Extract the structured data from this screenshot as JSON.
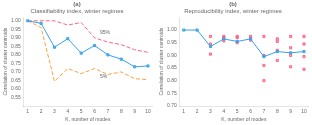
{
  "chart_data": [
    {
      "type": "line",
      "title": "(a)",
      "subtitle": "Classifiability index, winter regimes",
      "xlabel": "K, number of modes",
      "ylabel": "Correlation of cluster centroids",
      "xlim": [
        0.7,
        10.3
      ],
      "ylim": [
        0.5,
        1.02
      ],
      "xticks": [
        1,
        2,
        3,
        4,
        5,
        6,
        7,
        8,
        9,
        10
      ],
      "yticks": [
        0.55,
        {
          "value": 0.6,
          "label": "0.60"
        },
        0.65,
        {
          "value": 0.7,
          "label": "0.70"
        },
        0.75,
        {
          "value": 0.8,
          "label": "0.80"
        },
        0.85,
        {
          "value": 0.9,
          "label": "0.90"
        },
        0.95,
        {
          "value": 1.0,
          "label": "1.00"
        }
      ],
      "grid": false,
      "series": [
        {
          "x": [
            1,
            2,
            3,
            4,
            5,
            6,
            7,
            8,
            9,
            10
          ],
          "values": [
            1.0,
            0.985,
            0.845,
            0.895,
            0.81,
            0.855,
            0.8,
            0.775,
            0.73,
            0.735
          ],
          "marker": "square",
          "line_style": "solid"
        },
        {
          "x": [
            1,
            2,
            3,
            4,
            5,
            6,
            7,
            8,
            9,
            10
          ],
          "values": [
            1.0,
            1.0,
            1.0,
            0.975,
            0.99,
            0.9,
            0.875,
            0.86,
            0.83,
            0.815
          ],
          "line_style": "dashed"
        },
        {
          "x": [
            1,
            2,
            3,
            4,
            5,
            6,
            7,
            8,
            9,
            10
          ],
          "values": [
            1.0,
            0.96,
            0.645,
            0.72,
            0.69,
            0.72,
            0.685,
            0.7,
            0.66,
            0.655
          ],
          "line_style": "dashed"
        }
      ],
      "annotations": [
        {
          "text": "95%",
          "x": 6.4,
          "y": 0.915
        },
        {
          "text": "5%",
          "x": 6.4,
          "y": 0.658
        }
      ]
    },
    {
      "type": "line",
      "title": "(b)",
      "subtitle": "Reproducibility index, winter regimes",
      "xlabel": "K, number of modes",
      "ylabel": "Correlation of cluster centroids",
      "xlim": [
        0.7,
        10.3
      ],
      "ylim": [
        0.7,
        1.05
      ],
      "xticks": [
        1,
        2,
        3,
        4,
        5,
        6,
        7,
        8,
        9,
        10
      ],
      "yticks": [
        {
          "value": 0.7,
          "label": "0.70"
        },
        0.75,
        {
          "value": 0.8,
          "label": "0.80"
        },
        0.85,
        {
          "value": 0.9,
          "label": "0.90"
        },
        0.95,
        {
          "value": 1.0,
          "label": "1.00"
        }
      ],
      "grid": false,
      "series": [
        {
          "x": [
            1,
            2,
            3,
            4,
            5,
            6,
            7,
            8,
            9,
            10
          ],
          "values": [
            1.0,
            1.0,
            0.935,
            0.965,
            0.955,
            0.965,
            0.895,
            0.915,
            0.91,
            0.915
          ],
          "marker": "square",
          "line_style": "solid"
        },
        {
          "type": "scatter",
          "x": [
            3,
            3,
            3,
            4,
            4,
            4,
            5,
            5,
            5,
            6,
            6,
            6,
            7,
            7,
            7,
            7,
            8,
            8,
            8,
            8,
            9,
            9,
            9,
            9,
            10,
            10,
            10,
            10
          ],
          "values": [
            0.905,
            0.945,
            0.975,
            0.957,
            0.97,
            0.975,
            0.95,
            0.97,
            0.975,
            0.96,
            0.968,
            0.975,
            0.8,
            0.86,
            0.9,
            0.975,
            0.88,
            0.92,
            0.955,
            0.965,
            0.855,
            0.9,
            0.93,
            0.975,
            0.845,
            0.895,
            0.945,
            0.975
          ],
          "marker": "square"
        }
      ]
    }
  ]
}
